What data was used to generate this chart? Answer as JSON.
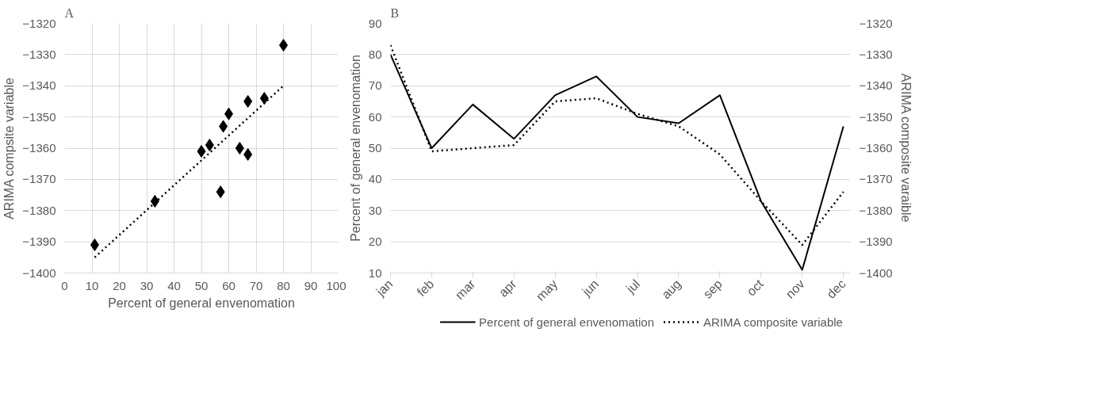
{
  "chart_data": [
    {
      "type": "scatter",
      "title": "A",
      "xlabel": "Percent of general envenomation",
      "ylabel": "ARIMA compsite variable",
      "xlim": [
        0,
        100
      ],
      "xticks": [
        0,
        10,
        20,
        30,
        40,
        50,
        60,
        70,
        80,
        90,
        100
      ],
      "ylim": [
        -1400,
        -1320
      ],
      "yticks": [
        -1400,
        -1390,
        -1380,
        -1370,
        -1360,
        -1350,
        -1340,
        -1330,
        -1320
      ],
      "grid": true,
      "series": [
        {
          "type": "scatter",
          "color": "#000000",
          "marker": "diamond",
          "x": [
            11,
            33,
            50,
            53,
            57,
            58,
            60,
            64,
            67,
            67,
            73,
            80
          ],
          "values": [
            -1391,
            -1377,
            -1361,
            -1359,
            -1374,
            -1353,
            -1349,
            -1360,
            -1345,
            -1362,
            -1344,
            -1327
          ]
        },
        {
          "type": "line",
          "color": "#000000",
          "line_style": "dotted",
          "x": [
            11,
            80
          ],
          "values": [
            -1395,
            -1340
          ]
        }
      ]
    },
    {
      "type": "line",
      "title": "B",
      "ylabel": "Percent of general envenomation",
      "y2label": "ARIMA composite varaible",
      "categories": [
        "jan",
        "feb",
        "mar",
        "apr",
        "may",
        "jun",
        "jul",
        "aug",
        "sep",
        "oct",
        "nov",
        "dec"
      ],
      "ylim": [
        10,
        90
      ],
      "yticks": [
        10,
        20,
        30,
        40,
        50,
        60,
        70,
        80,
        90
      ],
      "y2lim": [
        -1400,
        -1320
      ],
      "y2ticks": [
        -1400,
        -1390,
        -1380,
        -1370,
        -1360,
        -1350,
        -1340,
        -1330,
        -1320
      ],
      "grid": "y",
      "legend": "bottom",
      "series": [
        {
          "name": "Percent of general envenomation",
          "color": "#000000",
          "line_style": "solid",
          "values": [
            80,
            50,
            64,
            53,
            67,
            73,
            60,
            58,
            67,
            33,
            11,
            57
          ]
        },
        {
          "name": "ARIMA composite variable",
          "color": "#000000",
          "line_style": "dotted",
          "axis": "y2",
          "values": [
            -1327,
            -1361,
            -1360,
            -1359,
            -1345,
            -1344,
            -1349,
            -1353,
            -1362,
            -1377,
            -1391,
            -1374
          ]
        }
      ]
    }
  ]
}
